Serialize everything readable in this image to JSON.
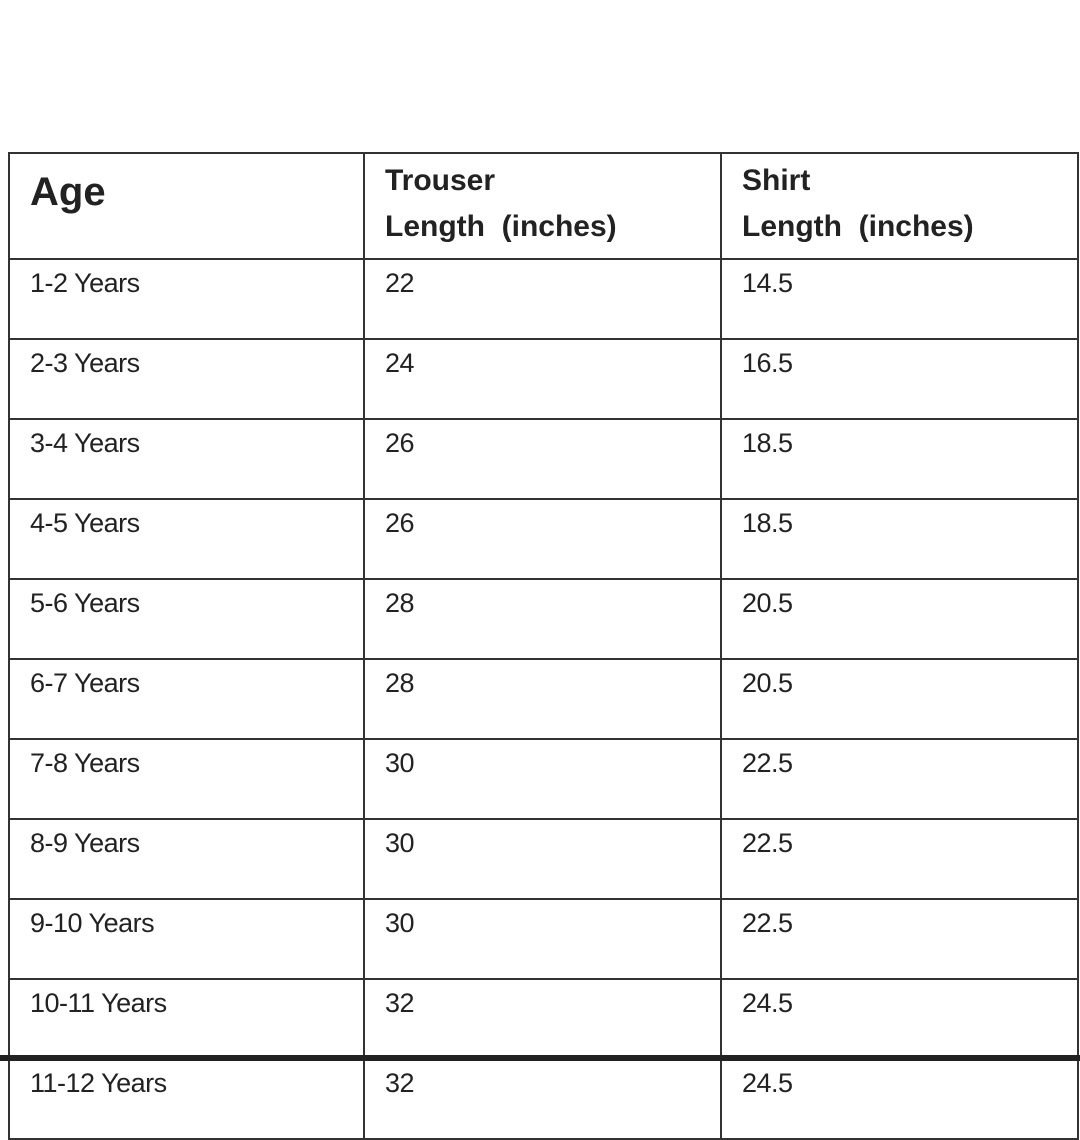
{
  "table": {
    "headers": [
      "Age",
      "Trouser Length (inches)",
      "Shirt Length (inches)"
    ],
    "header_lines": [
      [
        "Age"
      ],
      [
        "Trouser",
        "Length  (inches)"
      ],
      [
        "Shirt",
        "Length  (inches)"
      ]
    ],
    "rows": [
      [
        "1-2 Years",
        "22",
        "14.5"
      ],
      [
        "2-3 Years",
        "24",
        "16.5"
      ],
      [
        "3-4 Years",
        "26",
        "18.5"
      ],
      [
        "4-5 Years",
        "26",
        "18.5"
      ],
      [
        "5-6 Years",
        "28",
        "20.5"
      ],
      [
        "6-7 Years",
        "28",
        "20.5"
      ],
      [
        "7-8 Years",
        "30",
        "22.5"
      ],
      [
        "8-9 Years",
        "30",
        "22.5"
      ],
      [
        "9-10 Years",
        "30",
        "22.5"
      ],
      [
        "10-11 Years",
        "32",
        "24.5"
      ],
      [
        "11-12 Years",
        "32",
        "24.5"
      ]
    ]
  }
}
